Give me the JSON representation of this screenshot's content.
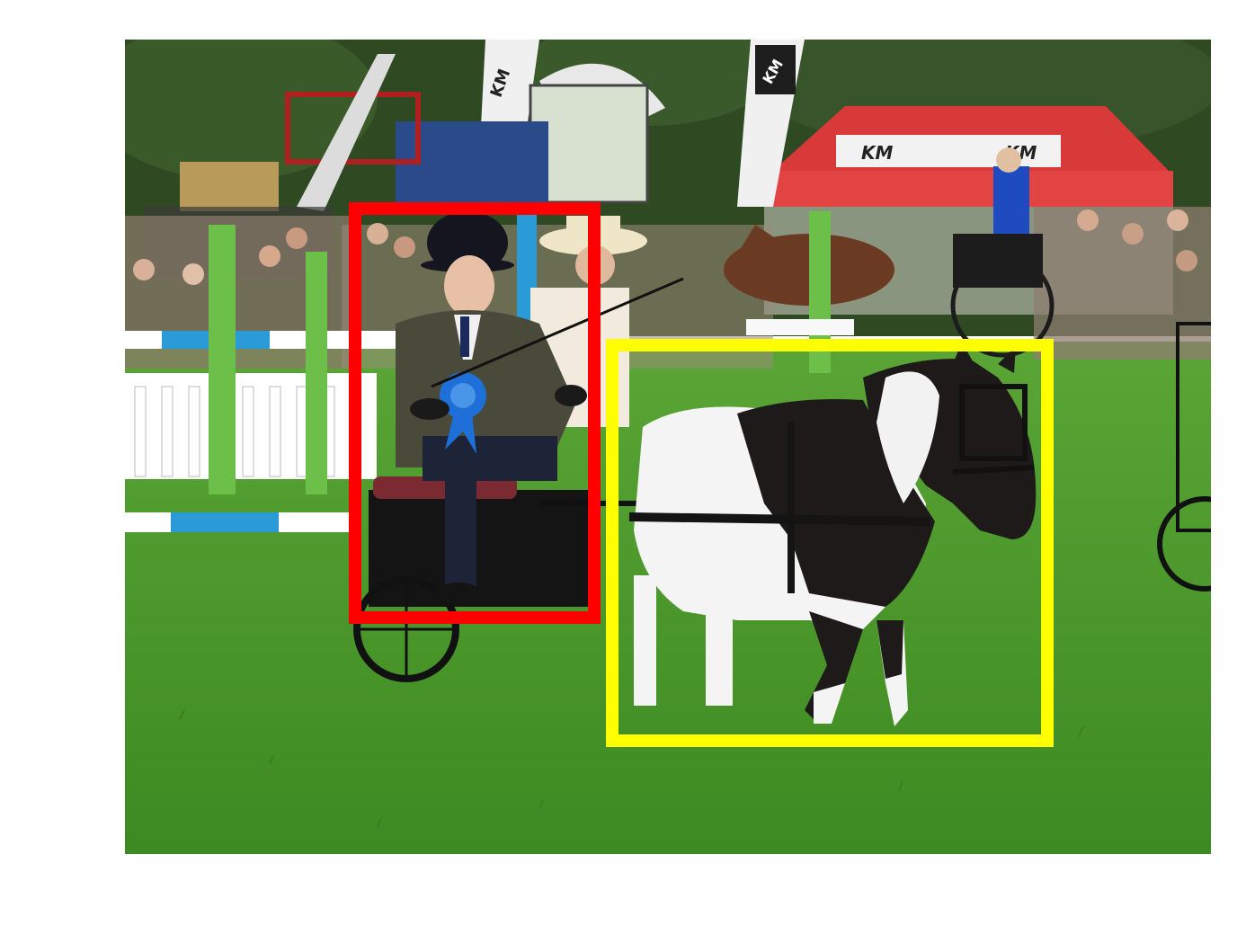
{
  "scene": {
    "description_free": true,
    "signage": {
      "banner_left": "KM",
      "banner_right": "KM",
      "tent_logo_1": "KM",
      "tent_logo_2": "KM"
    }
  },
  "annotations": [
    {
      "label": "person",
      "color": "#ff0000"
    },
    {
      "label": "horse",
      "color": "#ffff00"
    }
  ],
  "colors": {
    "grass": "#4f9a2c",
    "grass_dark": "#3f8322",
    "trees": "#2f4a22",
    "tent_red": "#d83a3a",
    "tent_white": "#f2f2f2",
    "rail_blue": "#2a9bd6",
    "rail_green": "#6cc04a",
    "coat": "#4a4a3a",
    "pony_black": "#1f1a1a",
    "pony_white": "#f4f4f4"
  }
}
